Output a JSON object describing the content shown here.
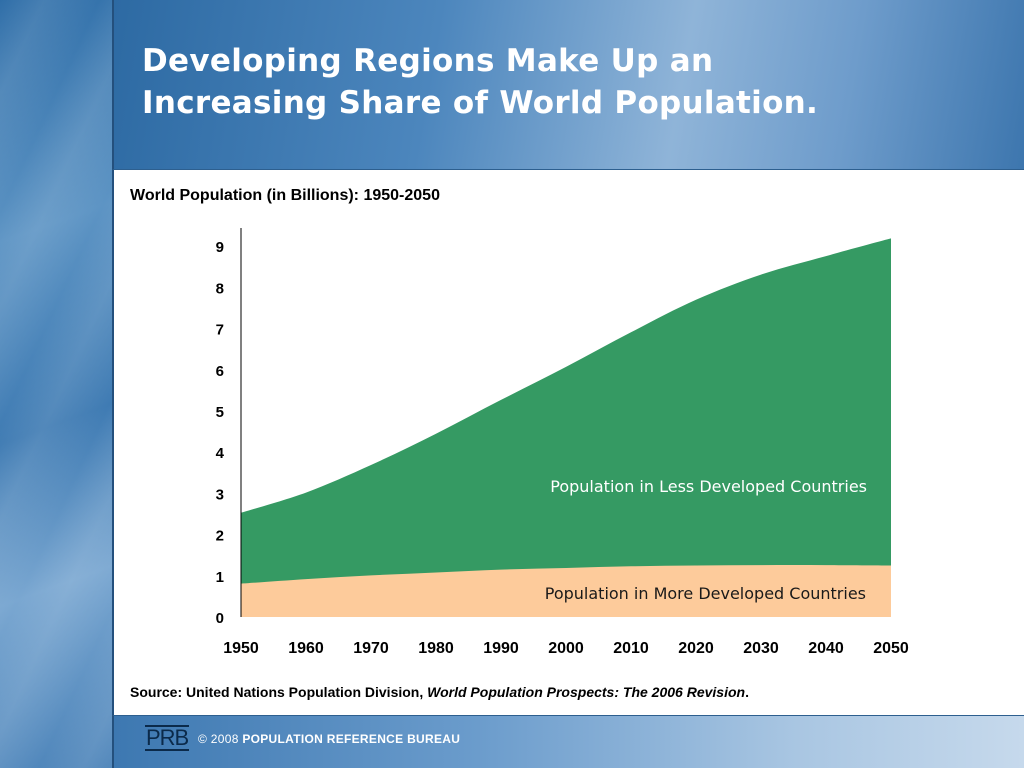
{
  "slide": {
    "title_line1": "Developing Regions Make Up an",
    "title_line2": "Increasing Share of World Population.",
    "source_prefix": "Source: United Nations Population Division, ",
    "source_title": "World Population Prospects: The 2006 Revision",
    "source_suffix": ".",
    "footer_logo": "PRB",
    "footer_copyright": "© 2008",
    "footer_org": "POPULATION REFERENCE BUREAU"
  },
  "colors": {
    "less_developed": "#359a63",
    "more_developed": "#fdcb9b"
  },
  "chart_data": {
    "type": "area",
    "title": "World Population (in Billions): 1950-2050",
    "stacked": true,
    "x": [
      1950,
      1960,
      1970,
      1980,
      1990,
      2000,
      2010,
      2020,
      2030,
      2040,
      2050
    ],
    "xticks": [
      "1950",
      "1960",
      "1970",
      "1980",
      "1990",
      "2000",
      "2010",
      "2020",
      "2030",
      "2040",
      "2050"
    ],
    "yticks": [
      "0",
      "1",
      "2",
      "3",
      "4",
      "5",
      "6",
      "7",
      "8",
      "9"
    ],
    "ylim": [
      0,
      9.5
    ],
    "xlim": [
      1950,
      2050
    ],
    "series": [
      {
        "name": "Population in More Developed Countries",
        "values": [
          0.81,
          0.92,
          1.01,
          1.08,
          1.15,
          1.19,
          1.23,
          1.25,
          1.26,
          1.26,
          1.25
        ]
      },
      {
        "name": "Population in Less Developed Countries",
        "values": [
          1.72,
          2.1,
          2.68,
          3.37,
          4.12,
          4.88,
          5.68,
          6.45,
          7.05,
          7.5,
          7.94
        ]
      }
    ]
  }
}
